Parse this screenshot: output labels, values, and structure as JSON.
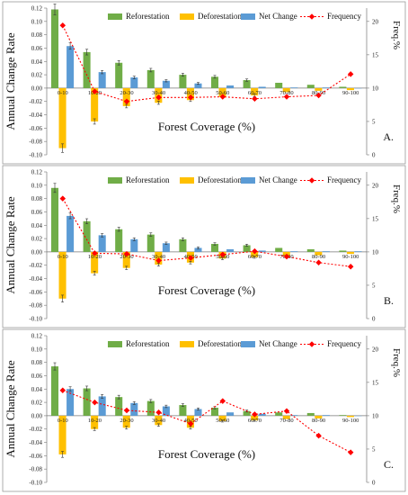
{
  "chart_data": [
    {
      "type": "bar",
      "panel_label": "A.",
      "categories": [
        "0-10",
        "10-20",
        "20-30",
        "30-40",
        "40-50",
        "50-60",
        "60-70",
        "70-80",
        "80-90",
        "90-100"
      ],
      "xlabel": "Forest Coverage (%)",
      "ylabel": "Annual Change Rate",
      "y2label": "Freq.%",
      "ylim": [
        -0.1,
        0.12
      ],
      "y2lim": [
        0,
        22
      ],
      "yticks": [
        "0.12",
        "0.10",
        "0.08",
        "0.06",
        "0.04",
        "0.02",
        "0.00",
        "-0.02",
        "-0.04",
        "-0.06",
        "-0.08",
        "-0.10"
      ],
      "y2ticks": [
        "20",
        "15",
        "10",
        "5",
        "0"
      ],
      "legend_position": "top",
      "series": [
        {
          "name": "Reforestation",
          "kind": "bar",
          "color": "#70ad47",
          "values": [
            0.118,
            0.054,
            0.038,
            0.027,
            0.02,
            0.017,
            0.012,
            0.008,
            0.005,
            0.002
          ]
        },
        {
          "name": "Deforestation",
          "kind": "bar",
          "color": "#ffc000",
          "values": [
            -0.09,
            -0.05,
            -0.027,
            -0.022,
            -0.018,
            -0.013,
            -0.011,
            -0.006,
            -0.004,
            -0.003
          ]
        },
        {
          "name": "Net Change",
          "kind": "bar",
          "color": "#5b9bd5",
          "values": [
            0.063,
            0.024,
            0.016,
            0.011,
            0.007,
            0.004,
            0.002,
            0.001,
            0.001,
            0.0
          ]
        },
        {
          "name": "Frequency",
          "kind": "line",
          "axis": "right",
          "color": "#ff0000",
          "values": [
            19.4,
            9.5,
            8.0,
            8.6,
            8.6,
            8.7,
            8.4,
            8.7,
            8.9,
            12.1
          ]
        }
      ]
    },
    {
      "type": "bar",
      "panel_label": "B.",
      "categories": [
        "0-10",
        "10-20",
        "20-30",
        "30-40",
        "40-50",
        "50-60",
        "60-70",
        "70-80",
        "80-90",
        "90-100"
      ],
      "xlabel": "Forest Coverage (%)",
      "ylabel": "Annual Change Rate",
      "y2label": "Freq.%",
      "ylim": [
        -0.1,
        0.12
      ],
      "y2lim": [
        0,
        22
      ],
      "yticks": [
        "0.12",
        "0.10",
        "0.08",
        "0.06",
        "0.04",
        "0.02",
        "0.00",
        "-0.02",
        "-0.04",
        "-0.06",
        "-0.08",
        "-0.10"
      ],
      "y2ticks": [
        "20",
        "15",
        "10",
        "5",
        "0"
      ],
      "legend_position": "top",
      "series": [
        {
          "name": "Reforestation",
          "kind": "bar",
          "color": "#70ad47",
          "values": [
            0.096,
            0.046,
            0.034,
            0.026,
            0.019,
            0.012,
            0.01,
            0.006,
            0.004,
            0.002
          ]
        },
        {
          "name": "Deforestation",
          "kind": "bar",
          "color": "#ffc000",
          "values": [
            -0.07,
            -0.032,
            -0.024,
            -0.019,
            -0.016,
            -0.01,
            -0.008,
            -0.006,
            -0.005,
            -0.003
          ]
        },
        {
          "name": "Net Change",
          "kind": "bar",
          "color": "#5b9bd5",
          "values": [
            0.054,
            0.025,
            0.019,
            0.013,
            0.006,
            0.004,
            0.002,
            0.001,
            0.001,
            0.001
          ]
        },
        {
          "name": "Frequency",
          "kind": "line",
          "axis": "right",
          "color": "#ff0000",
          "values": [
            18.0,
            9.8,
            9.7,
            8.7,
            9.1,
            9.6,
            10.1,
            9.3,
            8.4,
            7.8
          ]
        }
      ]
    },
    {
      "type": "bar",
      "panel_label": "C.",
      "categories": [
        "0-10",
        "10-20",
        "20-30",
        "30-40",
        "40-50",
        "50-60",
        "60-70",
        "70-80",
        "80-90",
        "90-100"
      ],
      "xlabel": "Forest Coverage (%)",
      "ylabel": "Annual Change Rate",
      "y2label": "Freq.%",
      "ylim": [
        -0.1,
        0.12
      ],
      "y2lim": [
        0,
        22
      ],
      "yticks": [
        "0.12",
        "0.10",
        "0.08",
        "0.06",
        "0.04",
        "0.02",
        "0.00",
        "-0.02",
        "-0.04",
        "-0.06",
        "-0.08",
        "-0.10"
      ],
      "y2ticks": [
        "20",
        "15",
        "10",
        "5",
        "0"
      ],
      "legend_position": "top",
      "series": [
        {
          "name": "Reforestation",
          "kind": "bar",
          "color": "#70ad47",
          "values": [
            0.074,
            0.041,
            0.028,
            0.022,
            0.016,
            0.012,
            0.007,
            0.005,
            0.004,
            0.001
          ]
        },
        {
          "name": "Deforestation",
          "kind": "bar",
          "color": "#ffc000",
          "values": [
            -0.058,
            -0.02,
            -0.018,
            -0.014,
            -0.018,
            -0.008,
            -0.007,
            -0.005,
            -0.004,
            -0.002
          ]
        },
        {
          "name": "Net Change",
          "kind": "bar",
          "color": "#5b9bd5",
          "values": [
            0.04,
            0.029,
            0.019,
            0.014,
            0.01,
            0.005,
            0.003,
            0.001,
            0.001,
            0.0
          ]
        },
        {
          "name": "Frequency",
          "kind": "line",
          "axis": "right",
          "color": "#ff0000",
          "values": [
            13.8,
            12.0,
            10.8,
            10.5,
            8.8,
            12.2,
            10.2,
            10.7,
            7.0,
            4.5
          ]
        }
      ]
    }
  ]
}
